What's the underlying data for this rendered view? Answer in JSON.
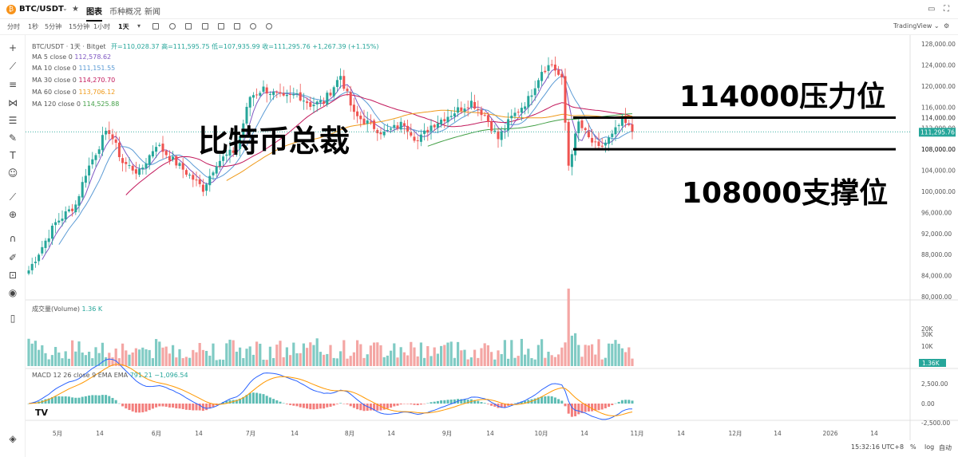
{
  "header": {
    "pair": "BTC/USDT",
    "coin_glyph": "₿",
    "star": "★",
    "tabs": [
      {
        "label": "图表",
        "active": true
      },
      {
        "label": "币种概况",
        "active": false
      },
      {
        "label": "新闻",
        "active": false
      }
    ]
  },
  "toolbar": {
    "timeframes": [
      {
        "label": "分时",
        "active": false
      },
      {
        "label": "1秒",
        "active": false
      },
      {
        "label": "5分钟",
        "active": false
      },
      {
        "label": "15分钟",
        "active": false
      },
      {
        "label": "1小时",
        "active": false
      },
      {
        "label": "1天",
        "active": true
      }
    ],
    "tradingview_label": "TradingView ⌄"
  },
  "left_tools": [
    "crosshair-icon",
    "trendline-icon",
    "horizontal-lines-icon",
    "pattern-icon",
    "fib-icon",
    "brush-icon",
    "text-icon",
    "emoji-icon",
    "ruler-icon",
    "zoom-icon",
    "magnet-icon",
    "lock-draw-icon",
    "lock-icon",
    "eye-icon",
    "trash-icon",
    "layers-icon"
  ],
  "legend": {
    "title": "BTC/USDT · 1天 · Bitget",
    "ohlc": "开=110,028.37 高=111,595.75 低=107,935.99 收=111,295.76 +1,267.39 (+1.15%)",
    "ma": [
      {
        "label": "MA 5 close 0",
        "value": "112,578.62",
        "color": "#7e57c2"
      },
      {
        "label": "MA 10 close 0",
        "value": "111,151.55",
        "color": "#5b9bd5"
      },
      {
        "label": "MA 30 close 0",
        "value": "114,270.70",
        "color": "#c2185b"
      },
      {
        "label": "MA 60 close 0",
        "value": "113,706.12",
        "color": "#ef9a1a"
      },
      {
        "label": "MA 120 close 0",
        "value": "114,525.88",
        "color": "#43a047"
      }
    ],
    "volume": "成交量(Volume)",
    "volume_value": "1.36 K",
    "macd": "MACD 12 26 close 9 EMA EMA",
    "macd_values": "791.21  −1,096.54"
  },
  "annotations": {
    "resistance": "114000压力位",
    "support": "108000支撑位",
    "watermark": "比特币总裁"
  },
  "status": {
    "time": "15:32:16 UTC+8",
    "percent": "%",
    "log": "log",
    "auto": "自动"
  },
  "chart_data": {
    "type": "candlestick",
    "price_axis": [
      "128,000.00",
      "124,000.00",
      "120,000.00",
      "116,000.00",
      "112,000.00",
      "108,000.00",
      "104,000.00",
      "100,000.00",
      "96,000.00",
      "92,000.00",
      "88,000.00",
      "84,000.00",
      "80,000.00"
    ],
    "ylim": [
      80000,
      128000
    ],
    "last_price": "111,295.76",
    "price_labels": [
      "114,000.00",
      "108,000.00"
    ],
    "resistance": 114000,
    "support": 108000,
    "volume_axis": [
      "30K",
      "20K",
      "10K"
    ],
    "volume_last": "1.36K",
    "macd_axis": [
      "2,500.00",
      "0.00",
      "-2,500.00"
    ],
    "x_ticks": [
      "5月",
      "14",
      "6月",
      "14",
      "7月",
      "14",
      "8月",
      "14",
      "9月",
      "14",
      "10月",
      "14",
      "11月",
      "14",
      "12月",
      "14",
      "2026",
      "14"
    ],
    "close_anchors": [
      [
        0,
        85000
      ],
      [
        8,
        94000
      ],
      [
        14,
        97500
      ],
      [
        17,
        103500
      ],
      [
        22,
        110000
      ],
      [
        24,
        111500
      ],
      [
        28,
        105500
      ],
      [
        33,
        103500
      ],
      [
        38,
        109000
      ],
      [
        42,
        106500
      ],
      [
        48,
        103000
      ],
      [
        52,
        100500
      ],
      [
        56,
        105500
      ],
      [
        62,
        108000
      ],
      [
        66,
        118000
      ],
      [
        70,
        119500
      ],
      [
        76,
        117500
      ],
      [
        80,
        118500
      ],
      [
        84,
        116500
      ],
      [
        88,
        117000
      ],
      [
        93,
        122000
      ],
      [
        97,
        114500
      ],
      [
        101,
        113000
      ],
      [
        106,
        111000
      ],
      [
        112,
        113000
      ],
      [
        116,
        109500
      ],
      [
        120,
        112500
      ],
      [
        124,
        114000
      ],
      [
        128,
        115500
      ],
      [
        132,
        117000
      ],
      [
        136,
        114500
      ],
      [
        140,
        110000
      ],
      [
        144,
        114000
      ],
      [
        149,
        117500
      ],
      [
        153,
        123000
      ],
      [
        156,
        124200
      ],
      [
        159,
        121000
      ],
      [
        161,
        105000
      ],
      [
        164,
        113000
      ],
      [
        167,
        110000
      ],
      [
        170,
        108000
      ],
      [
        174,
        110500
      ],
      [
        177,
        113500
      ],
      [
        180,
        111296
      ]
    ]
  }
}
